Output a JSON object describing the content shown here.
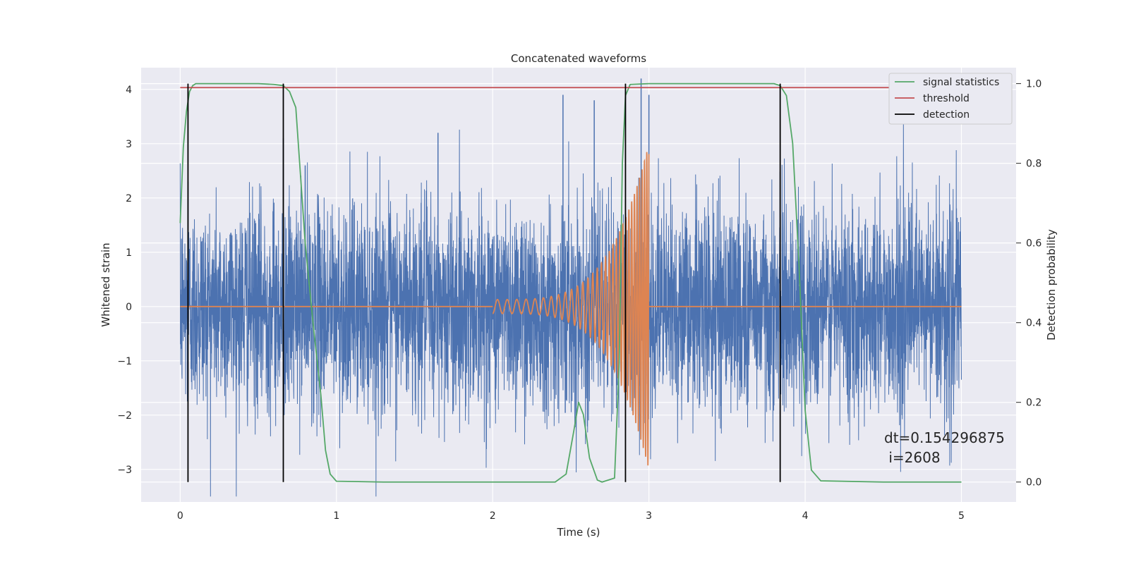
{
  "chart_data": {
    "type": "line",
    "title": "Concatenated waveforms",
    "xlabel": "Time (s)",
    "ylabel": "Whitened strain",
    "ylabel_right": "Detection probability",
    "xlim": [
      -0.25,
      5.35
    ],
    "ylim": [
      -3.6,
      4.4
    ],
    "ylim_right": [
      -0.05,
      1.04
    ],
    "x_ticks": [
      0,
      1,
      2,
      3,
      4,
      5
    ],
    "y_ticks": [
      -3,
      -2,
      -1,
      0,
      1,
      2,
      3,
      4
    ],
    "y_ticks_right": [
      0.0,
      0.2,
      0.4,
      0.6,
      0.8,
      1.0
    ],
    "x_tick_labels": [
      "0",
      "1",
      "2",
      "3",
      "4",
      "5"
    ],
    "y_tick_labels": [
      "−3",
      "−2",
      "−1",
      "0",
      "1",
      "2",
      "3",
      "4"
    ],
    "y_tick_labels_right": [
      "0.0",
      "0.2",
      "0.4",
      "0.6",
      "0.8",
      "1.0"
    ],
    "grid": true,
    "legend_position": "top-right",
    "colors": {
      "background": "#eaeaf2",
      "grid": "#ffffff",
      "strain": "#4c72b0",
      "template": "#dd8452",
      "signal_statistics": "#55a868",
      "threshold": "#c44e52",
      "detection": "#000000"
    },
    "series": [
      {
        "name": "",
        "axis": "left",
        "kind": "noise",
        "x_range": [
          0,
          5
        ],
        "amplitude_envelope": [
          -3.5,
          4.2
        ],
        "peaks": [
          [
            0.05,
            2.3
          ],
          [
            0.66,
            3.1
          ],
          [
            0.8,
            2.6
          ],
          [
            1.65,
            3.2
          ],
          [
            2.45,
            3.9
          ],
          [
            2.65,
            3.8
          ],
          [
            2.95,
            4.2
          ],
          [
            3.0,
            3.9
          ]
        ]
      },
      {
        "name": "",
        "axis": "left",
        "kind": "chirp",
        "x_range": [
          2.0,
          3.0
        ],
        "f_start_hz": 16,
        "f_end_hz": 70,
        "amp_start": 0.13,
        "amp_end": 3.0
      },
      {
        "name": "signal statistics",
        "axis": "right",
        "x": [
          0.0,
          0.02,
          0.04,
          0.06,
          0.08,
          0.1,
          0.15,
          0.3,
          0.5,
          0.6,
          0.66,
          0.7,
          0.74,
          0.8,
          0.85,
          0.9,
          0.93,
          0.96,
          1.0,
          1.3,
          2.0,
          2.4,
          2.47,
          2.52,
          2.55,
          2.58,
          2.62,
          2.67,
          2.7,
          2.78,
          2.81,
          2.83,
          2.85,
          2.88,
          3.0,
          3.5,
          3.8,
          3.84,
          3.88,
          3.92,
          3.96,
          4.0,
          4.04,
          4.1,
          4.5,
          5.0
        ],
        "y": [
          0.65,
          0.84,
          0.93,
          0.98,
          0.995,
          1.0,
          1.0,
          1.0,
          1.0,
          0.998,
          0.995,
          0.98,
          0.94,
          0.6,
          0.4,
          0.22,
          0.08,
          0.02,
          0.002,
          0.0,
          0.0,
          0.0,
          0.02,
          0.13,
          0.2,
          0.17,
          0.06,
          0.005,
          0.0,
          0.01,
          0.3,
          0.8,
          0.97,
          0.998,
          1.0,
          1.0,
          1.0,
          0.995,
          0.97,
          0.85,
          0.55,
          0.18,
          0.03,
          0.003,
          0.0,
          0.0
        ]
      },
      {
        "name": "threshold",
        "axis": "right",
        "x": [
          0,
          5
        ],
        "y": [
          0.99,
          0.99
        ]
      },
      {
        "name": "detection",
        "axis": "right",
        "kind": "vlines",
        "x": [
          0.05,
          0.66,
          2.85,
          3.84
        ],
        "y_range": [
          0.0,
          1.0
        ]
      }
    ],
    "annotation": {
      "line1": "dt=0.154296875",
      "line2": " i=2608",
      "x": 4.5,
      "y": -2.55
    }
  }
}
